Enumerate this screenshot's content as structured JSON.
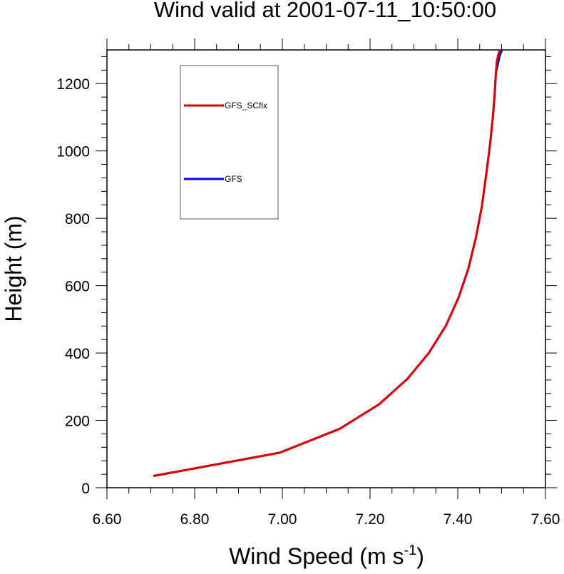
{
  "chart_data": {
    "type": "line",
    "title": "Wind valid at 2001-07-11_10:50:00",
    "xlabel_main": "Wind Speed (m s",
    "xlabel_sup": "-1",
    "xlabel_close": ")",
    "ylabel": "Height (m)",
    "xlim": [
      6.6,
      7.6
    ],
    "ylim": [
      0,
      1300
    ],
    "xticks": [
      6.6,
      6.8,
      7.0,
      7.2,
      7.4,
      7.6
    ],
    "xtick_labels": [
      "6.60",
      "6.80",
      "7.00",
      "7.20",
      "7.40",
      "7.60"
    ],
    "yticks": [
      0,
      200,
      400,
      600,
      800,
      1000,
      1200
    ],
    "ytick_labels": [
      "0",
      "200",
      "400",
      "600",
      "800",
      "1000",
      "1200"
    ],
    "grid": false,
    "legend_position": "top-left",
    "series": [
      {
        "name": "GFS_SCfix",
        "color": "#e00000",
        "x": [
          6.706,
          6.994,
          7.131,
          7.221,
          7.285,
          7.334,
          7.373,
          7.402,
          7.424,
          7.441,
          7.455,
          7.465,
          7.474,
          7.48,
          7.484,
          7.487,
          7.489,
          7.493,
          7.497
        ],
        "y": [
          35,
          104,
          175,
          248,
          323,
          400,
          481,
          565,
          650,
          740,
          835,
          932,
          1023,
          1100,
          1165,
          1232,
          1265,
          1290,
          1300
        ]
      },
      {
        "name": "GFS",
        "color": "#0000dd",
        "x": [
          6.706,
          6.994,
          7.131,
          7.221,
          7.285,
          7.334,
          7.373,
          7.402,
          7.424,
          7.441,
          7.455,
          7.465,
          7.474,
          7.48,
          7.484,
          7.487,
          7.49,
          7.496,
          7.501
        ],
        "y": [
          35,
          104,
          175,
          248,
          323,
          400,
          481,
          565,
          650,
          740,
          835,
          932,
          1023,
          1100,
          1165,
          1232,
          1250,
          1285,
          1300
        ]
      }
    ]
  }
}
